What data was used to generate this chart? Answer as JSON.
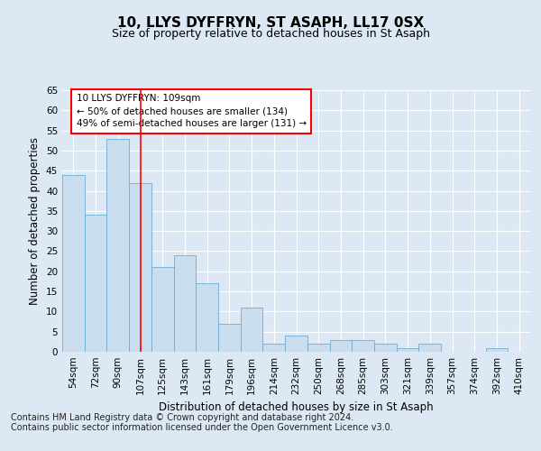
{
  "title": "10, LLYS DYFFRYN, ST ASAPH, LL17 0SX",
  "subtitle": "Size of property relative to detached houses in St Asaph",
  "xlabel": "Distribution of detached houses by size in St Asaph",
  "ylabel": "Number of detached properties",
  "categories": [
    "54sqm",
    "72sqm",
    "90sqm",
    "107sqm",
    "125sqm",
    "143sqm",
    "161sqm",
    "179sqm",
    "196sqm",
    "214sqm",
    "232sqm",
    "250sqm",
    "268sqm",
    "285sqm",
    "303sqm",
    "321sqm",
    "339sqm",
    "357sqm",
    "374sqm",
    "392sqm",
    "410sqm"
  ],
  "values": [
    44,
    34,
    53,
    42,
    21,
    24,
    17,
    7,
    11,
    2,
    4,
    2,
    3,
    3,
    2,
    1,
    2,
    0,
    0,
    1,
    0
  ],
  "bar_color": "#c9ddef",
  "bar_edge_color": "#6aaed6",
  "red_line_x": 3,
  "annotation_text": "10 LLYS DYFFRYN: 109sqm\n← 50% of detached houses are smaller (134)\n49% of semi-detached houses are larger (131) →",
  "annotation_box_color": "white",
  "annotation_box_edge_color": "red",
  "ylim": [
    0,
    65
  ],
  "yticks": [
    0,
    5,
    10,
    15,
    20,
    25,
    30,
    35,
    40,
    45,
    50,
    55,
    60,
    65
  ],
  "footer_text": "Contains HM Land Registry data © Crown copyright and database right 2024.\nContains public sector information licensed under the Open Government Licence v3.0.",
  "background_color": "#dce9f5",
  "plot_bg_color": "#dce9f5",
  "grid_color": "white",
  "title_fontsize": 11,
  "subtitle_fontsize": 9,
  "axis_label_fontsize": 8.5,
  "tick_fontsize": 7.5,
  "footer_fontsize": 7,
  "ann_fontsize": 7.5
}
